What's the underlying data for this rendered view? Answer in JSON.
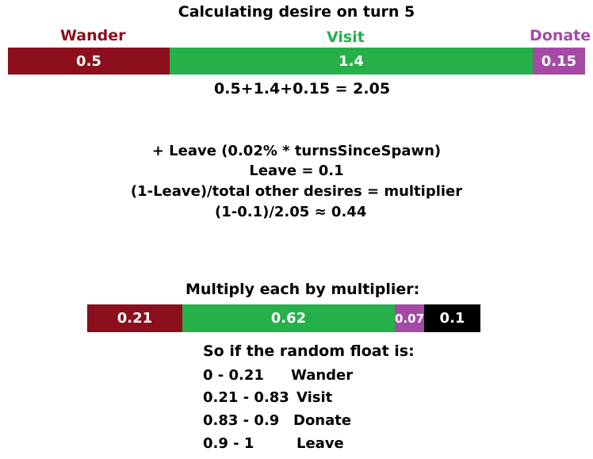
{
  "title": "Calculating desire on turn 5",
  "colors": {
    "wander": "#8b0f1d",
    "visit": "#25b04a",
    "donate": "#a44aa5",
    "leave": "#000000"
  },
  "top_bar": {
    "segments": [
      {
        "key": "wander",
        "label": "Wander",
        "value": "0.5"
      },
      {
        "key": "visit",
        "label": "Visit",
        "value": "1.4"
      },
      {
        "key": "donate",
        "label": "Donate",
        "value": "0.15"
      }
    ]
  },
  "sum_line": "0.5+1.4+0.15 = 2.05",
  "leave_lines": [
    "+ Leave (0.02% * turnsSinceSpawn)",
    "Leave = 0.1",
    "(1-Leave)/total other desires = multiplier",
    "(1-0.1)/2.05 ≈ 0.44"
  ],
  "multiply_heading": "Multiply each by multiplier:",
  "bottom_bar": {
    "segments": [
      {
        "key": "wander",
        "value": "0.21"
      },
      {
        "key": "visit",
        "value": "0.62"
      },
      {
        "key": "donate",
        "value": "0.07"
      },
      {
        "key": "leave",
        "value": "0.1"
      }
    ]
  },
  "random_heading": "So if the random float is:",
  "ranges": [
    {
      "range": "0 - 0.21",
      "action": "Wander"
    },
    {
      "range": "0.21 - 0.83",
      "action": "Visit"
    },
    {
      "range": "0.83 - 0.9",
      "action": "Donate"
    },
    {
      "range": "0.9 -  1",
      "action": "Leave"
    }
  ]
}
